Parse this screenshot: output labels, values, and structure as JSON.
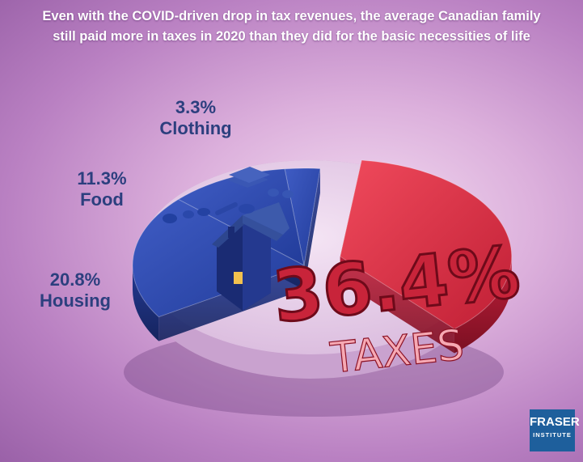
{
  "headline": {
    "line1": "Even with the COVID-driven drop in tax revenues, the average Canadian family",
    "line2": "still paid more in taxes in 2020 than they did for the basic necessities of life"
  },
  "chart_data": {
    "type": "pie",
    "title": "",
    "slices": [
      {
        "label": "Clothing",
        "display": "3.3%",
        "value": 3.3,
        "color": "#2b46a6"
      },
      {
        "label": "Food",
        "display": "11.3%",
        "value": 11.3,
        "color": "#2b46a6"
      },
      {
        "label": "Housing",
        "display": "20.8%",
        "value": 20.8,
        "color": "#2b46a6"
      },
      {
        "label": "TAXES",
        "display": "36.4%",
        "value": 36.4,
        "color": "#d42a3e"
      }
    ],
    "remainder_color": "#e6cde8",
    "style": "3d exploded"
  },
  "logo": {
    "line1": "FRASER",
    "line2": "INSTITUTE"
  }
}
